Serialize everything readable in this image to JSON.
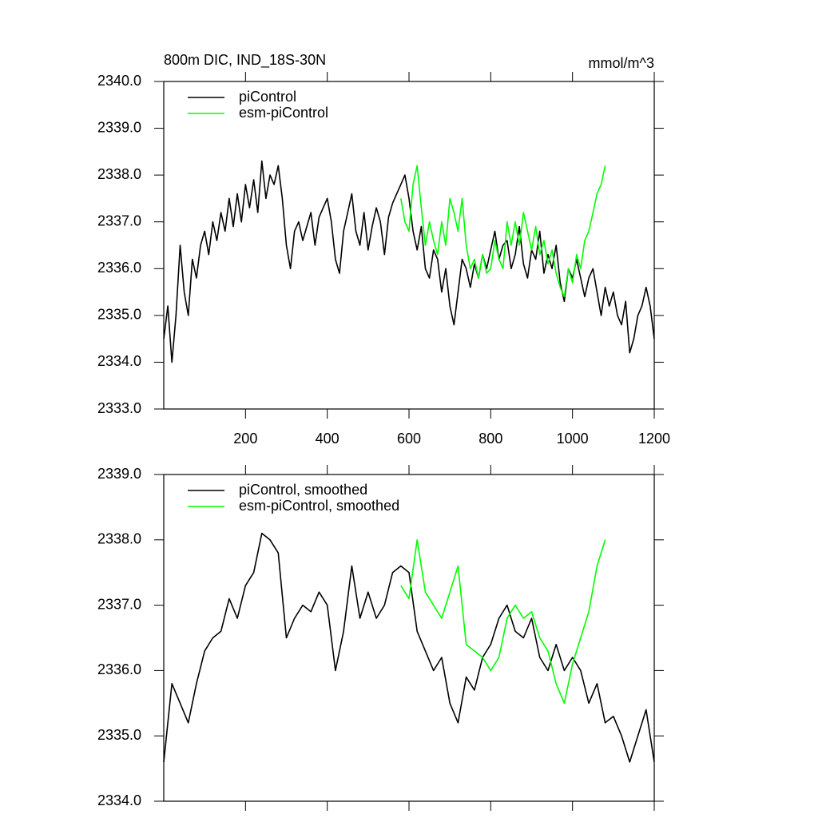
{
  "chart_data": [
    {
      "type": "line",
      "title": "800m DIC, IND_18S-30N",
      "subtitle": "mmol/m^3",
      "xlim": [
        0,
        1200
      ],
      "xticks": [
        200,
        400,
        600,
        800,
        1000,
        1200
      ],
      "ylim": [
        2333,
        2340
      ],
      "yticks": [
        {
          "value": 2333,
          "label": "2333.0"
        },
        {
          "value": 2334,
          "label": "2334.0"
        },
        {
          "value": 2335,
          "label": "2335.0"
        },
        {
          "value": 2336,
          "label": "2336.0"
        },
        {
          "value": 2337,
          "label": "2337.0"
        },
        {
          "value": 2338,
          "label": "2338.0"
        },
        {
          "value": 2339,
          "label": "2339.0"
        },
        {
          "value": 2340,
          "label": "2340.0"
        }
      ],
      "legend": "upper-left",
      "series": [
        {
          "name": "piControl",
          "color": "#000000",
          "x": [
            0,
            10,
            20,
            30,
            40,
            50,
            60,
            70,
            80,
            90,
            100,
            110,
            120,
            130,
            140,
            150,
            160,
            170,
            180,
            190,
            200,
            210,
            220,
            230,
            240,
            250,
            260,
            270,
            280,
            290,
            300,
            310,
            320,
            330,
            340,
            350,
            360,
            370,
            380,
            390,
            400,
            410,
            420,
            430,
            440,
            450,
            460,
            470,
            480,
            490,
            500,
            510,
            520,
            530,
            540,
            550,
            560,
            570,
            580,
            590,
            600,
            610,
            620,
            630,
            640,
            650,
            660,
            670,
            680,
            690,
            700,
            710,
            720,
            730,
            740,
            750,
            760,
            770,
            780,
            790,
            800,
            810,
            820,
            830,
            840,
            850,
            860,
            870,
            880,
            890,
            900,
            910,
            920,
            930,
            940,
            950,
            960,
            970,
            980,
            990,
            1000,
            1010,
            1020,
            1030,
            1040,
            1050,
            1060,
            1070,
            1080,
            1090,
            1100,
            1110,
            1120,
            1130,
            1140,
            1150,
            1160,
            1170,
            1180,
            1190,
            1200
          ],
          "values": [
            2334.5,
            2335.2,
            2334.0,
            2335.0,
            2336.5,
            2335.5,
            2335.0,
            2336.2,
            2335.8,
            2336.5,
            2336.8,
            2336.3,
            2337.0,
            2336.6,
            2337.2,
            2336.8,
            2337.5,
            2336.9,
            2337.6,
            2337.0,
            2337.8,
            2337.3,
            2337.9,
            2337.2,
            2338.3,
            2337.5,
            2338.0,
            2337.8,
            2338.2,
            2337.5,
            2336.5,
            2336.0,
            2336.8,
            2337.0,
            2336.6,
            2336.9,
            2337.2,
            2336.5,
            2337.1,
            2337.3,
            2337.5,
            2337.0,
            2336.2,
            2335.9,
            2336.8,
            2337.2,
            2337.6,
            2336.8,
            2336.5,
            2337.2,
            2336.4,
            2336.9,
            2337.3,
            2337.0,
            2336.3,
            2337.1,
            2337.4,
            2337.6,
            2337.8,
            2338.0,
            2337.5,
            2336.8,
            2336.4,
            2336.9,
            2336.0,
            2335.8,
            2336.4,
            2336.2,
            2335.5,
            2336.0,
            2335.2,
            2334.8,
            2335.5,
            2336.2,
            2336.0,
            2335.6,
            2336.1,
            2335.8,
            2336.3,
            2336.0,
            2336.4,
            2336.8,
            2336.2,
            2336.5,
            2336.6,
            2336.0,
            2336.3,
            2336.9,
            2336.1,
            2335.8,
            2336.4,
            2336.2,
            2336.8,
            2335.9,
            2336.3,
            2336.0,
            2336.5,
            2335.7,
            2335.3,
            2336.0,
            2335.8,
            2336.2,
            2335.8,
            2335.4,
            2335.8,
            2336.0,
            2335.5,
            2335.0,
            2335.6,
            2335.2,
            2335.5,
            2335.0,
            2334.8,
            2335.3,
            2334.2,
            2334.5,
            2335.0,
            2335.2,
            2335.6,
            2335.2,
            2334.5
          ]
        },
        {
          "name": "esm-piControl",
          "color": "#00ff00",
          "x": [
            580,
            590,
            600,
            610,
            620,
            630,
            640,
            650,
            660,
            670,
            680,
            690,
            700,
            710,
            720,
            730,
            740,
            750,
            760,
            770,
            780,
            790,
            800,
            810,
            820,
            830,
            840,
            850,
            860,
            870,
            880,
            890,
            900,
            910,
            920,
            930,
            940,
            950,
            960,
            970,
            980,
            990,
            1000,
            1010,
            1020,
            1030,
            1040,
            1050,
            1060,
            1070,
            1080
          ],
          "values": [
            2337.5,
            2337.0,
            2336.8,
            2337.8,
            2338.2,
            2337.3,
            2336.5,
            2337.0,
            2336.6,
            2336.3,
            2337.0,
            2336.5,
            2337.5,
            2337.2,
            2336.8,
            2337.5,
            2336.5,
            2336.0,
            2336.2,
            2335.8,
            2336.3,
            2335.9,
            2336.0,
            2336.6,
            2336.2,
            2336.0,
            2337.0,
            2336.5,
            2337.0,
            2336.5,
            2337.2,
            2336.8,
            2336.4,
            2336.9,
            2336.3,
            2336.6,
            2336.1,
            2336.4,
            2335.9,
            2335.6,
            2335.4,
            2336.0,
            2335.7,
            2336.3,
            2336.0,
            2336.6,
            2336.8,
            2337.2,
            2337.6,
            2337.8,
            2338.2
          ]
        }
      ]
    },
    {
      "type": "line",
      "xlim": [
        0,
        1200
      ],
      "xticks": [
        200,
        400,
        600,
        800,
        1000,
        1200
      ],
      "xtick_labels": false,
      "ylim": [
        2334,
        2339
      ],
      "yticks": [
        {
          "value": 2334,
          "label": "2334.0"
        },
        {
          "value": 2335,
          "label": "2335.0"
        },
        {
          "value": 2336,
          "label": "2336.0"
        },
        {
          "value": 2337,
          "label": "2337.0"
        },
        {
          "value": 2338,
          "label": "2338.0"
        },
        {
          "value": 2339,
          "label": "2339.0"
        }
      ],
      "legend": "upper-left",
      "series": [
        {
          "name": "piControl, smoothed",
          "color": "#000000",
          "x": [
            0,
            20,
            40,
            60,
            80,
            100,
            120,
            140,
            160,
            180,
            200,
            220,
            240,
            260,
            280,
            300,
            320,
            340,
            360,
            380,
            400,
            420,
            440,
            460,
            480,
            500,
            520,
            540,
            560,
            580,
            600,
            620,
            640,
            660,
            680,
            700,
            720,
            740,
            760,
            780,
            800,
            820,
            840,
            860,
            880,
            900,
            920,
            940,
            960,
            980,
            1000,
            1020,
            1040,
            1060,
            1080,
            1100,
            1120,
            1140,
            1160,
            1180,
            1200
          ],
          "values": [
            2334.6,
            2335.8,
            2335.5,
            2335.2,
            2335.8,
            2336.3,
            2336.5,
            2336.6,
            2337.1,
            2336.8,
            2337.3,
            2337.5,
            2338.1,
            2338.0,
            2337.8,
            2336.5,
            2336.8,
            2337.0,
            2336.9,
            2337.2,
            2337.0,
            2336.0,
            2336.6,
            2337.6,
            2336.8,
            2337.2,
            2336.8,
            2337.0,
            2337.5,
            2337.6,
            2337.5,
            2336.6,
            2336.3,
            2336.0,
            2336.2,
            2335.5,
            2335.2,
            2335.9,
            2335.7,
            2336.2,
            2336.4,
            2336.8,
            2337.0,
            2336.6,
            2336.5,
            2336.8,
            2336.2,
            2336.0,
            2336.4,
            2336.0,
            2336.2,
            2336.0,
            2335.5,
            2335.8,
            2335.2,
            2335.3,
            2335.0,
            2334.6,
            2335.0,
            2335.4,
            2334.6
          ]
        },
        {
          "name": "esm-piControl, smoothed",
          "color": "#00ff00",
          "x": [
            580,
            600,
            620,
            640,
            660,
            680,
            700,
            720,
            740,
            760,
            780,
            800,
            820,
            840,
            860,
            880,
            900,
            920,
            940,
            960,
            980,
            1000,
            1020,
            1040,
            1060,
            1080
          ],
          "values": [
            2337.3,
            2337.1,
            2338.0,
            2337.2,
            2337.0,
            2336.8,
            2337.2,
            2337.6,
            2336.4,
            2336.3,
            2336.2,
            2336.0,
            2336.2,
            2336.8,
            2337.0,
            2336.8,
            2336.9,
            2336.5,
            2336.3,
            2335.8,
            2335.5,
            2336.1,
            2336.5,
            2336.9,
            2337.6,
            2338.0
          ]
        }
      ]
    }
  ]
}
